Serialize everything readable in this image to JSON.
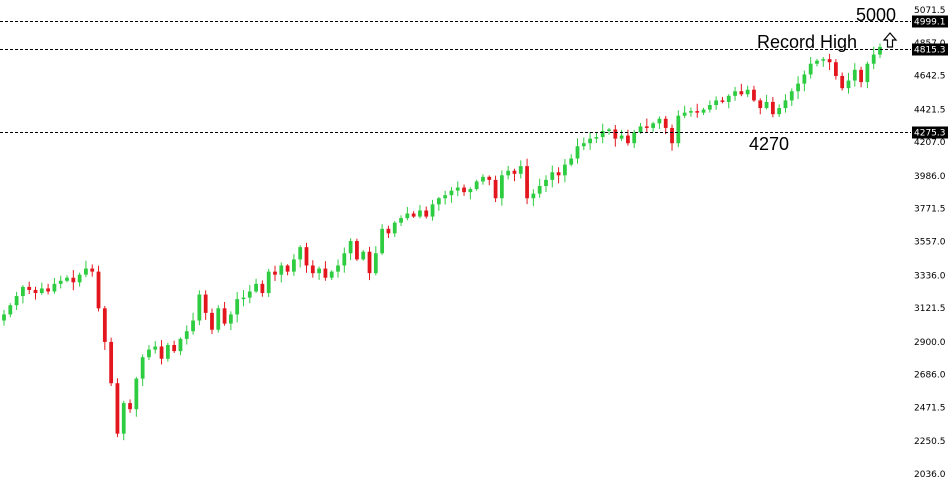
{
  "chart_data": {
    "type": "candlestick",
    "title": "",
    "xlabel": "",
    "ylabel": "",
    "ylim": [
      2036.0,
      5071.5
    ],
    "grid": false,
    "colors": {
      "up": "#2ecc40",
      "down": "#e3161d",
      "line": "#000000",
      "badge": "#000000"
    },
    "y_ticks": [
      "5071.5",
      "4857.0",
      "4642.5",
      "4421.5",
      "4207.0",
      "3986.0",
      "3771.5",
      "3557.0",
      "3336.0",
      "3121.5",
      "2900.0",
      "2686.0",
      "2471.5",
      "2250.5",
      "2036.0"
    ],
    "levels": [
      {
        "value": 4999.1,
        "label": "4999.1"
      },
      {
        "value": 4815.3,
        "label": "4815.3"
      },
      {
        "value": 4275.3,
        "label": "4275.3"
      }
    ],
    "annotations": [
      {
        "text": "5000",
        "at": 4999.1
      },
      {
        "text": "Record High",
        "at": 4815.3
      },
      {
        "text": "4270",
        "at": 4275.3
      }
    ],
    "arrow_icon": "up-arrow-icon",
    "candles_close": [
      3080,
      3140,
      3200,
      3260,
      3240,
      3220,
      3250,
      3230,
      3280,
      3300,
      3320,
      3290,
      3340,
      3380,
      3360,
      3120,
      2900,
      2630,
      2300,
      2500,
      2460,
      2660,
      2800,
      2850,
      2870,
      2790,
      2880,
      2840,
      2920,
      2970,
      3040,
      3210,
      3090,
      2980,
      3120,
      3020,
      3080,
      3180,
      3190,
      3230,
      3280,
      3220,
      3360,
      3340,
      3400,
      3360,
      3440,
      3520,
      3400,
      3350,
      3380,
      3320,
      3360,
      3400,
      3480,
      3560,
      3440,
      3490,
      3350,
      3480,
      3640,
      3610,
      3680,
      3710,
      3740,
      3720,
      3760,
      3720,
      3800,
      3840,
      3860,
      3890,
      3910,
      3880,
      3900,
      3950,
      3980,
      3960,
      3840,
      3990,
      4020,
      4000,
      4050,
      3840,
      3870,
      3920,
      3960,
      4010,
      3990,
      4060,
      4100,
      4180,
      4200,
      4230,
      4240,
      4280,
      4290,
      4230,
      4250,
      4200,
      4270,
      4310,
      4300,
      4330,
      4360,
      4300,
      4200,
      4380,
      4400,
      4410,
      4400,
      4420,
      4450,
      4480,
      4470,
      4510,
      4540,
      4520,
      4550,
      4480,
      4430,
      4470,
      4390,
      4430,
      4480,
      4540,
      4590,
      4650,
      4720,
      4740,
      4750,
      4730,
      4640,
      4560,
      4610,
      4680,
      4600,
      4720,
      4780,
      4830
    ]
  }
}
